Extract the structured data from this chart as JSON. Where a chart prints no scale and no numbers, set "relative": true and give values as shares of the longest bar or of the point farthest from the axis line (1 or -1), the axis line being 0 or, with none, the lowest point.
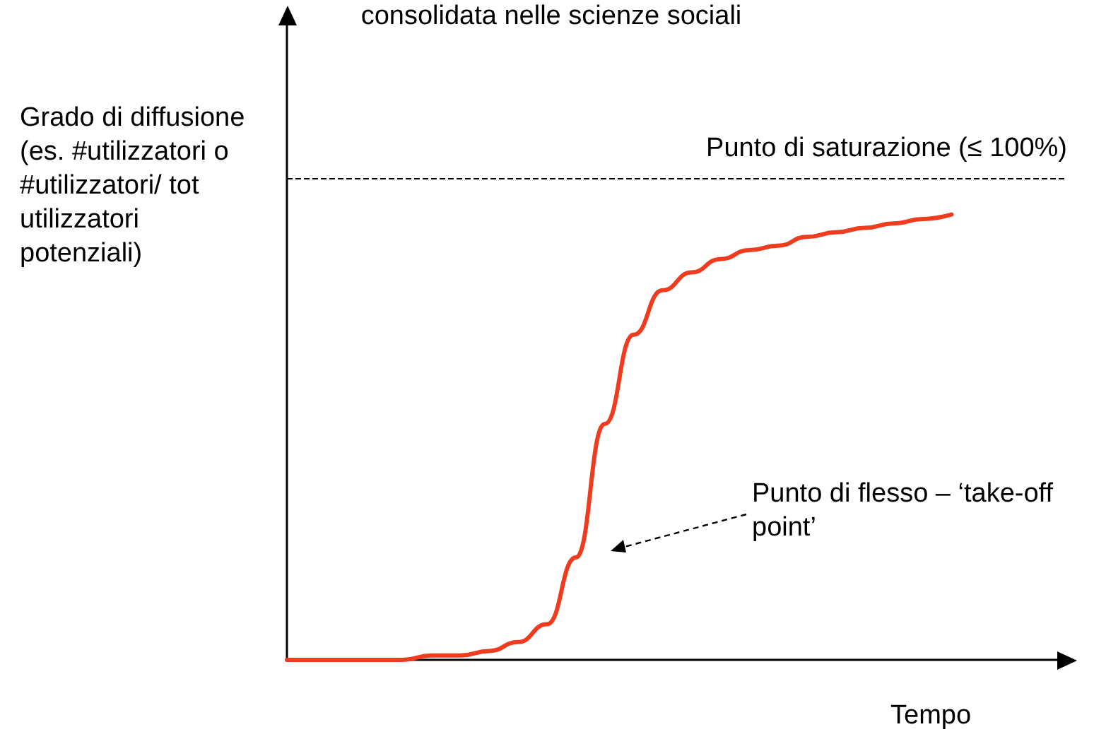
{
  "chart_data": {
    "type": "line",
    "relative": true,
    "title": "consolidata nelle scienze sociali",
    "ylabel": "Grado di diffusione (es. #utilizzatori o #utilizzatori/ tot utilizzatori potenziali)",
    "xlabel": "Tempo",
    "categories": [
      null,
      null,
      null,
      null,
      null,
      null,
      null,
      null,
      null,
      null,
      null,
      null,
      null,
      null,
      null,
      null,
      null,
      null,
      null,
      null,
      null,
      null,
      null,
      null,
      null,
      null,
      null,
      null
    ],
    "series": [
      {
        "color": "#f03c1e",
        "values": [
          0,
          0,
          0,
          0,
          0,
          0.01,
          0.01,
          0.02,
          0.04,
          0.08,
          0.23,
          0.53,
          0.73,
          0.83,
          0.87,
          0.9,
          0.92,
          0.93,
          0.95,
          0.96,
          0.97,
          0.98,
          0.99,
          1,
          null,
          null,
          null,
          null
        ]
      }
    ],
    "ref_lines": [
      {
        "axis": "y",
        "value": 1.08,
        "label": "Punto di saturazione (≤ 100%)",
        "color": "#000000",
        "line_style": "dashed"
      }
    ],
    "annotations": [
      "Punto di flesso – ‘take-off point’"
    ],
    "grid": false,
    "marker": "none",
    "line_style": "solid"
  }
}
